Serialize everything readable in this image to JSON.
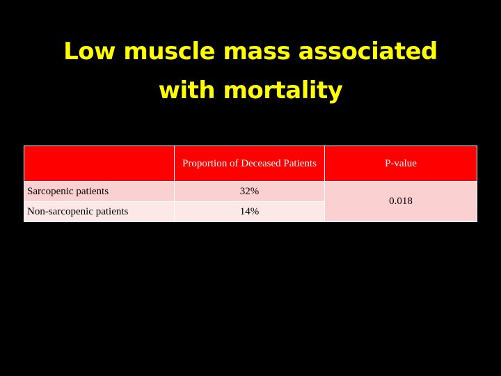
{
  "title": {
    "line1": "Low muscle mass associated",
    "line2": "with mortality"
  },
  "table": {
    "headers": [
      "",
      "Proportion of Deceased Patients",
      "P-value"
    ],
    "rows": [
      {
        "label": "Sarcopenic patients",
        "proportion": "32%"
      },
      {
        "label": "Non-sarcopenic patients",
        "proportion": "14%"
      }
    ],
    "p_value": "0.018"
  },
  "colors": {
    "background": "#000000",
    "title": "#ffff00",
    "header_fill": "#ff0000",
    "row_fill_dark": "#fbd0d0",
    "row_fill_light": "#fde8e8"
  }
}
